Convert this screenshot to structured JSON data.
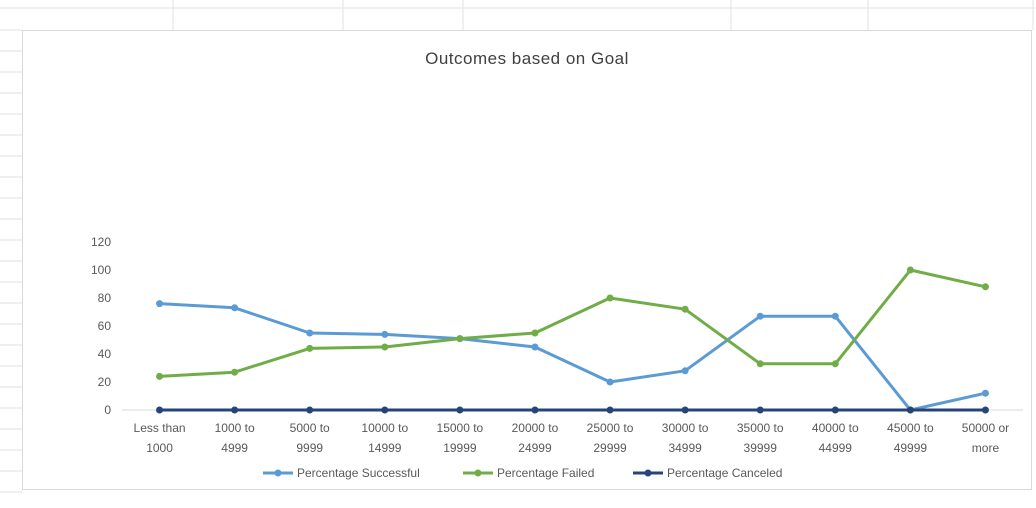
{
  "chart_data": {
    "type": "line",
    "title": "Outcomes based on Goal",
    "xlabel": "",
    "ylabel": "",
    "ylim": [
      0,
      120
    ],
    "yticks": [
      0,
      20,
      40,
      60,
      80,
      100,
      120
    ],
    "grid": false,
    "legend_position": "bottom",
    "categories": [
      [
        "Less than",
        "1000"
      ],
      [
        "1000 to",
        "4999"
      ],
      [
        "5000 to",
        "9999"
      ],
      [
        "10000 to",
        "14999"
      ],
      [
        "15000 to",
        "19999"
      ],
      [
        "20000 to",
        "24999"
      ],
      [
        "25000 to",
        "29999"
      ],
      [
        "30000 to",
        "34999"
      ],
      [
        "35000 to",
        "39999"
      ],
      [
        "40000 to",
        "44999"
      ],
      [
        "45000 to",
        "49999"
      ],
      [
        "50000 or",
        "more"
      ]
    ],
    "series": [
      {
        "name": "Percentage Successful",
        "color": "#5b9bd5",
        "values": [
          76,
          73,
          55,
          54,
          51,
          45,
          20,
          28,
          67,
          67,
          0,
          12
        ]
      },
      {
        "name": "Percentage Failed",
        "color": "#70ad47",
        "values": [
          24,
          27,
          44,
          45,
          51,
          55,
          80,
          72,
          33,
          33,
          100,
          88
        ]
      },
      {
        "name": "Percentage Canceled",
        "color": "#264478",
        "values": [
          0,
          0,
          0,
          0,
          0,
          0,
          0,
          0,
          0,
          0,
          0,
          0
        ]
      }
    ]
  }
}
